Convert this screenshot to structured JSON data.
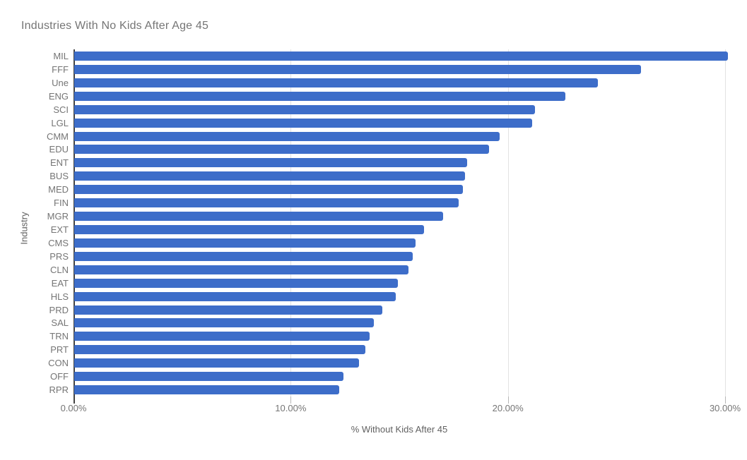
{
  "chart_data": {
    "type": "bar",
    "orientation": "horizontal",
    "title": "Industries With No Kids After Age 45",
    "xlabel": "% Without Kids After 45",
    "ylabel": "Industry",
    "xlim": [
      0,
      30.3
    ],
    "grid": true,
    "legend": "none",
    "bar_color": "#3d6dc9",
    "title_color": "#757575",
    "axis_label_color": "#616161",
    "tick_label_color": "#757575",
    "gridline_color": "#e3e3e3",
    "axis_line_color": "#424242",
    "x_ticks": [
      {
        "value": 0,
        "label": "0.00%"
      },
      {
        "value": 10,
        "label": "10.00%"
      },
      {
        "value": 20,
        "label": "20.00%"
      },
      {
        "value": 30,
        "label": "30.00%"
      }
    ],
    "categories": [
      "MIL",
      "FFF",
      "Une",
      "ENG",
      "SCI",
      "LGL",
      "CMM",
      "EDU",
      "ENT",
      "BUS",
      "MED",
      "FIN",
      "MGR",
      "EXT",
      "CMS",
      "PRS",
      "CLN",
      "EAT",
      "HLS",
      "PRD",
      "SAL",
      "TRN",
      "PRT",
      "CON",
      "OFF",
      "RPR"
    ],
    "values": [
      30.1,
      26.1,
      24.1,
      22.6,
      21.2,
      21.1,
      19.6,
      19.1,
      18.1,
      18.0,
      17.9,
      17.7,
      17.0,
      16.1,
      15.7,
      15.6,
      15.4,
      14.9,
      14.8,
      14.2,
      13.8,
      13.6,
      13.4,
      13.1,
      12.4,
      12.2
    ]
  }
}
